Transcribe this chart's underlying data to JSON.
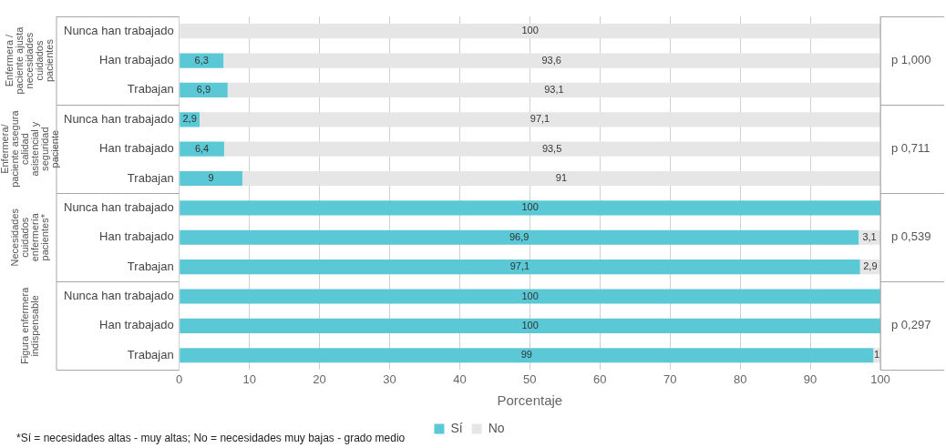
{
  "chart_data": {
    "type": "bar",
    "orientation": "horizontal",
    "stacked": true,
    "xlabel": "Porcentaje",
    "categories": [
      "Nunca han trabajado",
      "Han trabajado",
      "Trabajan",
      "Nunca han trabajado",
      "Han trabajado",
      "Trabajan",
      "Nunca han trabajado",
      "Han trabajado",
      "Trabajan",
      "Nunca han trabajado",
      "Han trabajado",
      "Trabajan"
    ],
    "series": [
      {
        "name": "Sí",
        "color": "#5bc8d6",
        "values": [
          0,
          6.3,
          6.9,
          2.9,
          6.4,
          9,
          100,
          96.9,
          97.1,
          100,
          100,
          99
        ],
        "value_labels": [
          null,
          "6,3",
          "6,9",
          "2,9",
          "6,4",
          "9",
          "100",
          "96,9",
          "97,1",
          "100",
          "100",
          "99"
        ]
      },
      {
        "name": "No",
        "color": "#e6e6e6",
        "values": [
          100,
          93.6,
          93.1,
          97.1,
          93.5,
          91,
          0,
          3.1,
          2.9,
          0,
          0,
          1
        ],
        "value_labels": [
          "100",
          "93,6",
          "93,1",
          "97,1",
          "93,5",
          "91",
          null,
          "3,1",
          "2,9",
          null,
          null,
          "1"
        ]
      }
    ],
    "xlim": [
      0,
      100
    ],
    "xticks": [
      0,
      10,
      20,
      30,
      40,
      50,
      60,
      70,
      80,
      90,
      100
    ],
    "grid": "x",
    "legend": "bottom",
    "annotations": [
      "Enfermera / paciente ajusta necesidades cuidados pacientes",
      "Enfermera/ paciente asegura calidad asistencial y seguridad paciente",
      "Necesidades cuidados enfermería pacientes*",
      "Figura enfermera indispensable",
      "p 1,000",
      "p 0,711",
      "p 0,539",
      "p 0,297",
      "*Sí = necesidades altas - muy altas; No = necesidades muy bajas - grado medio"
    ]
  }
}
